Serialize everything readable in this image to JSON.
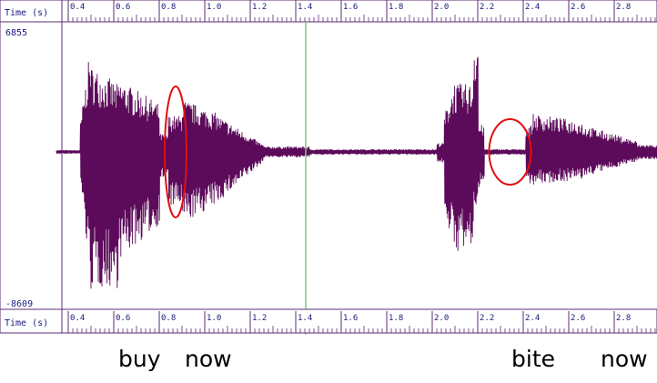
{
  "time_label": "Time (s)",
  "time_ticks": [
    "0.4",
    "0.6",
    "0.8",
    "1.0",
    "1.2",
    "1.4",
    "1.6",
    "1.8",
    "2.0",
    "2.2",
    "2.4",
    "2.6",
    "2.8"
  ],
  "amplitude": {
    "max_label": "6855",
    "min_label": "-8609"
  },
  "cursor_time": 1.4,
  "waveform_color": "#5c0a5a",
  "cursor_color": "#7bc87b",
  "circle_color": "#e01010",
  "circled_regions": [
    {
      "name": "buy-now-boundary-circle",
      "t": 0.82,
      "amp": 0
    },
    {
      "name": "bite-now-boundary-circle",
      "t": 2.29,
      "amp": 0
    }
  ],
  "labels": {
    "buy": "buy",
    "now1": "now",
    "bite": "bite",
    "now2": "now"
  }
}
